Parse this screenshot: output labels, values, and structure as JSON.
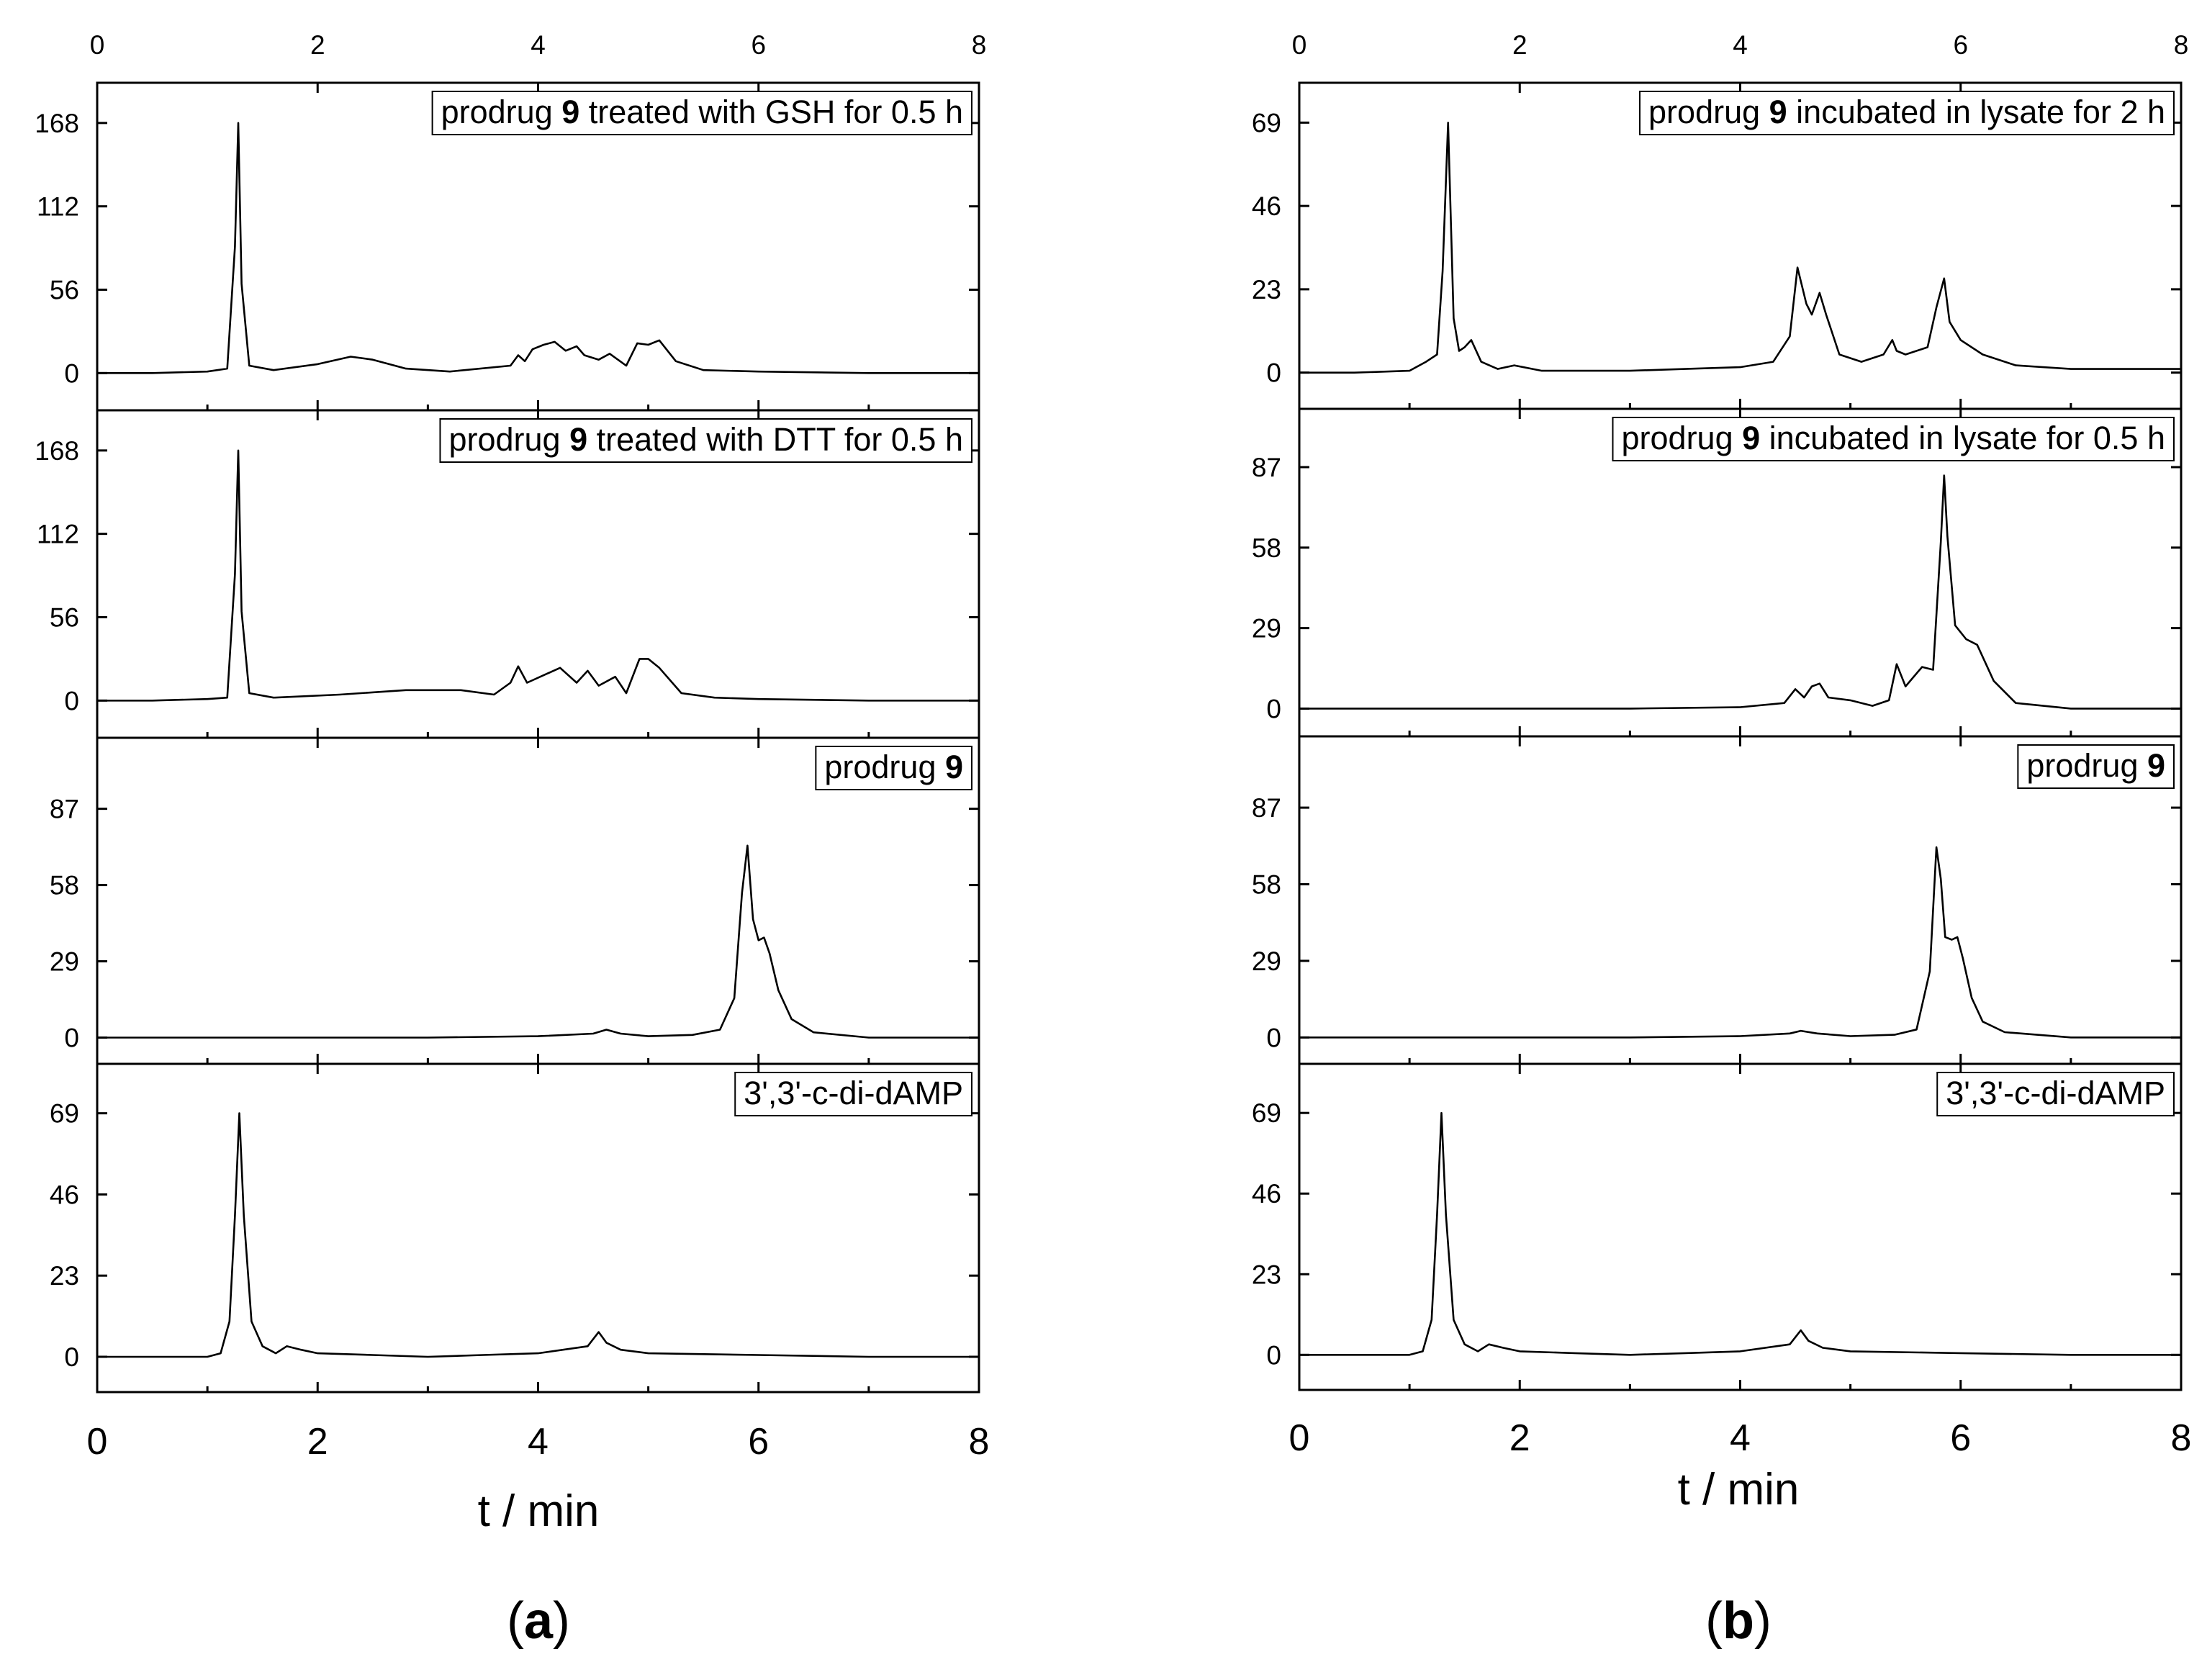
{
  "figure": {
    "xlabel": "t / min",
    "xlim": [
      0,
      8
    ],
    "x_ticks": [
      0,
      2,
      4,
      6,
      8
    ],
    "columns": [
      {
        "letter": "a"
      },
      {
        "letter": "b"
      }
    ]
  },
  "chart_data": [
    {
      "type": "line",
      "column": "a",
      "label": {
        "prefix": "prodrug ",
        "bold": "9",
        "suffix": " treated with GSH for 0.5 h"
      },
      "y_ticks": [
        0,
        56,
        112,
        168
      ],
      "ylim": [
        -25,
        195
      ],
      "x": [
        0,
        0.5,
        1.0,
        1.18,
        1.25,
        1.28,
        1.31,
        1.38,
        1.6,
        2.0,
        2.3,
        2.5,
        2.8,
        3.2,
        3.75,
        3.82,
        3.88,
        3.95,
        4.05,
        4.15,
        4.25,
        4.35,
        4.42,
        4.55,
        4.65,
        4.8,
        4.9,
        5.0,
        5.1,
        5.25,
        5.5,
        6,
        7,
        8
      ],
      "y": [
        0,
        0,
        1,
        3,
        85,
        168,
        60,
        5,
        2,
        6,
        11,
        9,
        3,
        1,
        5,
        12,
        8,
        16,
        19,
        21,
        15,
        18,
        12,
        9,
        13,
        5,
        20,
        19,
        22,
        8,
        2,
        1,
        0,
        0
      ]
    },
    {
      "type": "line",
      "column": "a",
      "label": {
        "prefix": "prodrug ",
        "bold": "9",
        "suffix": " treated with DTT for 0.5 h"
      },
      "y_ticks": [
        0,
        56,
        112,
        168
      ],
      "ylim": [
        -25,
        195
      ],
      "x": [
        0,
        0.5,
        1.0,
        1.18,
        1.25,
        1.28,
        1.31,
        1.38,
        1.6,
        2.2,
        2.8,
        3.3,
        3.6,
        3.75,
        3.82,
        3.9,
        4.05,
        4.2,
        4.35,
        4.45,
        4.55,
        4.7,
        4.8,
        4.92,
        5.0,
        5.1,
        5.3,
        5.6,
        6,
        7,
        8
      ],
      "y": [
        0,
        0,
        1,
        2,
        85,
        168,
        60,
        5,
        2,
        4,
        7,
        7,
        4,
        12,
        23,
        12,
        17,
        22,
        12,
        20,
        10,
        16,
        5,
        28,
        28,
        22,
        5,
        2,
        1,
        0,
        0
      ]
    },
    {
      "type": "line",
      "column": "a",
      "label": {
        "prefix": "prodrug ",
        "bold": "9",
        "suffix": ""
      },
      "y_ticks": [
        0,
        29,
        58,
        87
      ],
      "ylim": [
        -10,
        114
      ],
      "x": [
        0,
        1,
        2,
        3,
        4,
        4.5,
        4.62,
        4.75,
        5,
        5.4,
        5.65,
        5.78,
        5.85,
        5.9,
        5.95,
        6.0,
        6.05,
        6.1,
        6.18,
        6.3,
        6.5,
        7,
        8
      ],
      "y": [
        0,
        0,
        0,
        0,
        0.5,
        1.5,
        3,
        1.5,
        0.5,
        1,
        3,
        15,
        55,
        73,
        45,
        37,
        38,
        32,
        18,
        7,
        2,
        0,
        0
      ]
    },
    {
      "type": "line",
      "column": "a",
      "label": {
        "prefix": "3',3'-c-di-dAMP",
        "bold": "",
        "suffix": ""
      },
      "y_ticks": [
        0,
        23,
        46,
        69
      ],
      "ylim": [
        -10,
        83
      ],
      "x": [
        0,
        0.5,
        1.0,
        1.12,
        1.2,
        1.25,
        1.29,
        1.33,
        1.4,
        1.5,
        1.62,
        1.72,
        1.85,
        2.0,
        2.5,
        3,
        3.5,
        4,
        4.45,
        4.55,
        4.62,
        4.75,
        5,
        6,
        7,
        8
      ],
      "y": [
        0,
        0,
        0,
        1,
        10,
        40,
        69,
        40,
        10,
        3,
        1,
        3,
        2,
        1,
        0.5,
        0,
        0.5,
        1,
        3,
        7,
        4,
        2,
        1,
        0.5,
        0,
        0
      ]
    },
    {
      "type": "line",
      "column": "b",
      "label": {
        "prefix": "prodrug ",
        "bold": "9",
        "suffix": " incubated in lysate for 2 h"
      },
      "y_ticks": [
        0,
        23,
        46,
        69
      ],
      "ylim": [
        -10,
        80
      ],
      "x": [
        0,
        0.5,
        1.0,
        1.15,
        1.25,
        1.3,
        1.35,
        1.4,
        1.45,
        1.5,
        1.56,
        1.65,
        1.8,
        1.95,
        2.2,
        3,
        3.5,
        4.0,
        4.3,
        4.45,
        4.52,
        4.6,
        4.65,
        4.72,
        4.78,
        4.9,
        5.1,
        5.3,
        5.38,
        5.42,
        5.5,
        5.7,
        5.78,
        5.85,
        5.9,
        6.0,
        6.2,
        6.5,
        7,
        8
      ],
      "y": [
        0,
        0,
        0.5,
        3,
        5,
        28,
        69,
        15,
        6,
        7,
        9,
        3,
        1,
        2,
        0.5,
        0.5,
        1,
        1.5,
        3,
        10,
        29,
        19,
        16,
        22,
        16,
        5,
        3,
        5,
        9,
        6,
        5,
        7,
        18,
        26,
        14,
        9,
        5,
        2,
        1,
        1
      ]
    },
    {
      "type": "line",
      "column": "b",
      "label": {
        "prefix": "prodrug ",
        "bold": "9",
        "suffix": " incubated in lysate for 0.5 h"
      },
      "y_ticks": [
        0,
        29,
        58,
        87
      ],
      "ylim": [
        -10,
        108
      ],
      "x": [
        0,
        1,
        2,
        3,
        4,
        4.4,
        4.5,
        4.58,
        4.65,
        4.72,
        4.8,
        5.0,
        5.2,
        5.35,
        5.42,
        5.5,
        5.65,
        5.75,
        5.82,
        5.85,
        5.88,
        5.95,
        6.05,
        6.15,
        6.3,
        6.5,
        7,
        8
      ],
      "y": [
        0,
        0,
        0,
        0,
        0.5,
        2,
        7,
        4,
        8,
        9,
        4,
        3,
        1,
        3,
        16,
        8,
        15,
        14,
        60,
        84,
        62,
        30,
        25,
        23,
        10,
        2,
        0,
        0
      ]
    },
    {
      "type": "line",
      "column": "b",
      "label": {
        "prefix": "prodrug ",
        "bold": "9",
        "suffix": ""
      },
      "y_ticks": [
        0,
        29,
        58,
        87
      ],
      "ylim": [
        -10,
        114
      ],
      "x": [
        0,
        1,
        2,
        3,
        4,
        4.45,
        4.55,
        4.7,
        5,
        5.4,
        5.6,
        5.72,
        5.78,
        5.82,
        5.86,
        5.92,
        5.97,
        6.02,
        6.1,
        6.2,
        6.4,
        7,
        8
      ],
      "y": [
        0,
        0,
        0,
        0,
        0.5,
        1.5,
        2.5,
        1.5,
        0.5,
        1,
        3,
        25,
        72,
        60,
        38,
        37,
        38,
        30,
        15,
        6,
        2,
        0,
        0
      ]
    },
    {
      "type": "line",
      "column": "b",
      "label": {
        "prefix": "3',3'-c-di-dAMP",
        "bold": "",
        "suffix": ""
      },
      "y_ticks": [
        0,
        23,
        46,
        69
      ],
      "ylim": [
        -10,
        83
      ],
      "x": [
        0,
        0.5,
        1.0,
        1.12,
        1.2,
        1.25,
        1.29,
        1.33,
        1.4,
        1.5,
        1.62,
        1.72,
        1.85,
        2.0,
        2.5,
        3,
        3.5,
        4,
        4.45,
        4.55,
        4.62,
        4.75,
        5,
        6,
        7,
        8
      ],
      "y": [
        0,
        0,
        0,
        1,
        10,
        40,
        69,
        40,
        10,
        3,
        1,
        3,
        2,
        1,
        0.5,
        0,
        0.5,
        1,
        3,
        7,
        4,
        2,
        1,
        0.5,
        0,
        0
      ]
    }
  ]
}
